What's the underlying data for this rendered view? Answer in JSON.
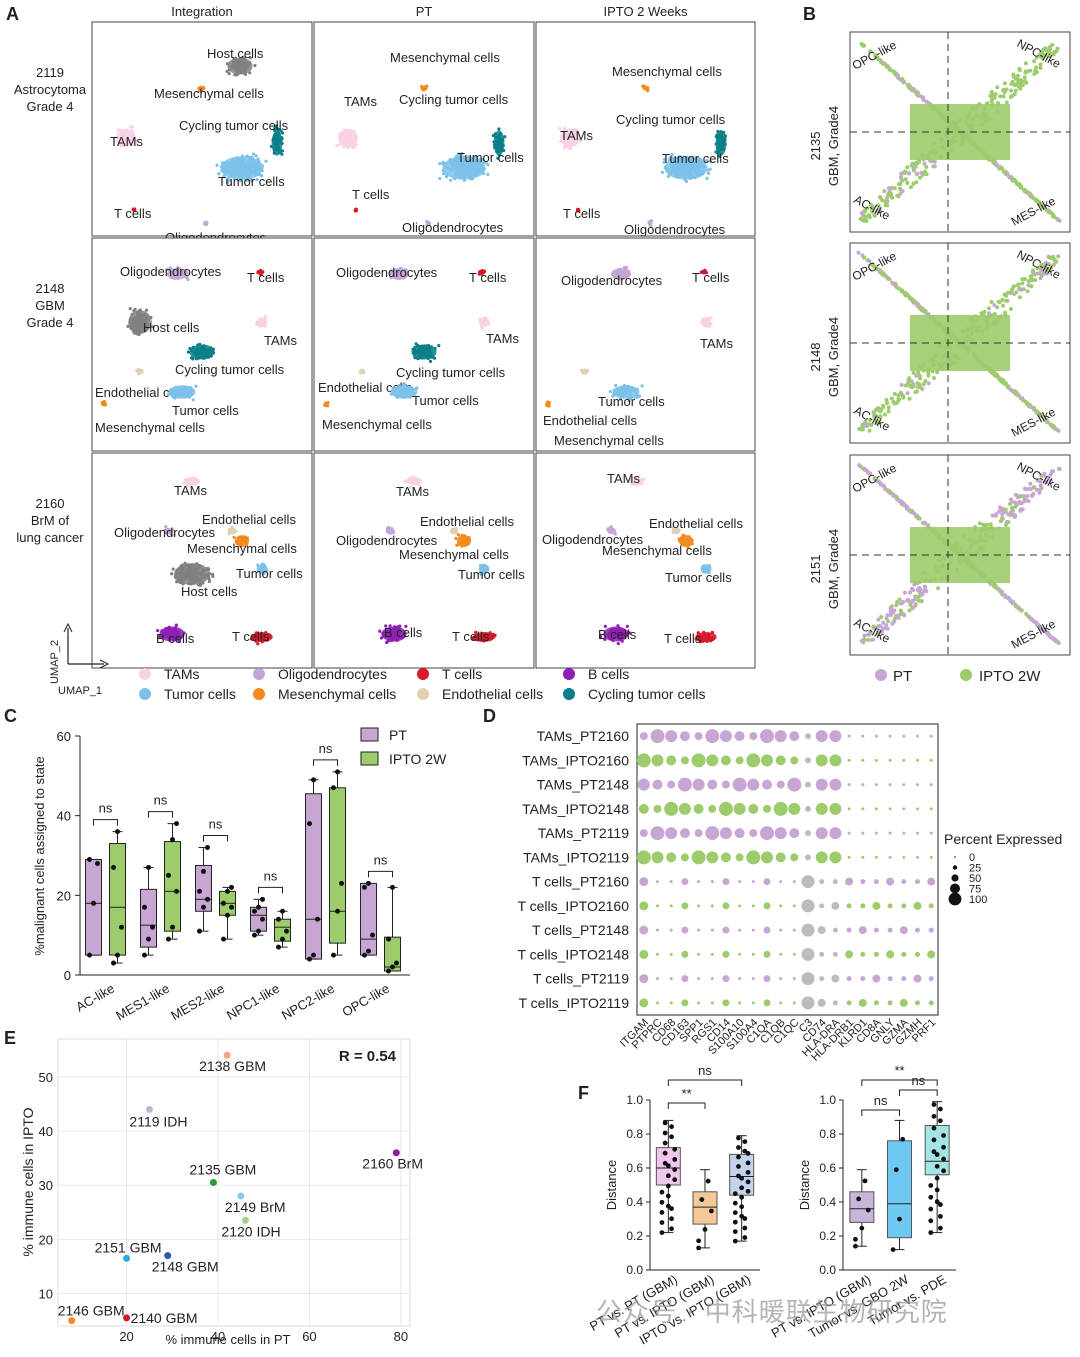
{
  "panels": {
    "A": "A",
    "B": "B",
    "C": "C",
    "D": "D",
    "E": "E",
    "F": "F"
  },
  "colors": {
    "TAMs": "#f9d1e6",
    "Tumor cells": "#7cc1ea",
    "Oligodendrocytes": "#c4a6d6",
    "Mesenchymal cells": "#f28a1f",
    "T cells": "#d61a2a",
    "Endothelial cells": "#ded2b3",
    "B cells": "#8e1fb4",
    "Cycling tumor cells": "#0a7f8a",
    "Host cells": "#808080",
    "pt": "#c7a6d3",
    "ipto": "#9ccc6c",
    "grey": "#bcbcbc"
  },
  "umap": {
    "columns": [
      "Integration",
      "PT",
      "IPTO 2 Weeks"
    ],
    "rows": [
      {
        "label": [
          "2119",
          "Astrocytoma",
          "Grade 4"
        ]
      },
      {
        "label": [
          "2148",
          "GBM",
          "Grade 4"
        ]
      },
      {
        "label": [
          "2160",
          "BrM of",
          "lung cancer"
        ]
      }
    ],
    "cells": [
      [
        [
          "Host cells",
          "Mesenchymal cells",
          "Cycling tumor cells",
          "TAMs",
          "Tumor cells",
          "T cells",
          "Oligodendrocytes"
        ],
        [
          "Mesenchymal cells",
          "TAMs",
          "Cycling tumor cells",
          "Tumor cells",
          "T cells",
          "Oligodendrocytes"
        ],
        [
          "Mesenchymal cells",
          "Cycling tumor cells",
          "TAMs",
          "Tumor cells",
          "T cells",
          "Oligodendrocytes"
        ]
      ],
      [
        [
          "Oligodendrocytes",
          "T cells",
          "Host cells",
          "TAMs",
          "Cycling tumor cells",
          "Endothelial cells",
          "Tumor cells",
          "Mesenchymal cells"
        ],
        [
          "Oligodendrocytes",
          "T cells",
          "TAMs",
          "Cycling tumor cells",
          "Endothelial cells",
          "Tumor cells",
          "Mesenchymal cells"
        ],
        [
          "Oligodendrocytes",
          "T cells",
          "TAMs",
          "Tumor cells",
          "Endothelial cells",
          "Mesenchymal cells"
        ]
      ],
      [
        [
          "TAMs",
          "Endothelial cells",
          "Oligodendrocytes",
          "Mesenchymal cells",
          "Tumor cells",
          "Host cells",
          "B cells",
          "T cells"
        ],
        [
          "TAMs",
          "Endothelial cells",
          "Oligodendrocytes",
          "Mesenchymal cells",
          "Tumor cells",
          "B cells",
          "T cells"
        ],
        [
          "TAMs",
          "Endothelial cells",
          "Oligodendrocytes",
          "Mesenchymal cells",
          "Tumor cells",
          "B cells",
          "T cells"
        ]
      ]
    ],
    "axis_y": "UMAP_2",
    "axis_x": "UMAP_1",
    "legend": [
      "TAMs",
      "Oligodendrocytes",
      "T cells",
      "B cells",
      "Tumor cells",
      "Mesenchymal cells",
      "Endothelial cells",
      "Cycling tumor cells"
    ]
  },
  "panelB": {
    "rows": [
      "2135\nGBM, Grade4",
      "2148\nGBM, Grade4",
      "2151\nGBM, Grade4"
    ],
    "corners": [
      "OPC-like",
      "NPC-like",
      "AC-like",
      "MES-like"
    ],
    "legend": [
      "PT",
      "IPTO 2W"
    ]
  },
  "chart_data": [
    {
      "panel": "C",
      "type": "box",
      "title": "",
      "ylabel": "%malignant cells assigned to state",
      "ylim": [
        0,
        60
      ],
      "yticks": [
        0,
        20,
        40,
        60
      ],
      "categories": [
        "AC-like",
        "MES1-like",
        "MES2-like",
        "NPC1-like",
        "NPC2-like",
        "OPC-like"
      ],
      "series": [
        {
          "name": "PT",
          "boxes": [
            {
              "min": 5,
              "q1": 5,
              "median": 18,
              "q3": 29,
              "max": 29,
              "points": [
                5,
                18,
                28,
                29
              ]
            },
            {
              "min": 5,
              "q1": 7,
              "median": 12.5,
              "q3": 21.5,
              "max": 27,
              "points": [
                5,
                9,
                12,
                17,
                27
              ]
            },
            {
              "min": 11,
              "q1": 16,
              "median": 19,
              "q3": 27.5,
              "max": 32,
              "points": [
                11,
                17,
                19,
                21,
                26,
                32
              ]
            },
            {
              "min": 10,
              "q1": 11,
              "median": 15,
              "q3": 17,
              "max": 19,
              "points": [
                10,
                11,
                14,
                16,
                17,
                19
              ]
            },
            {
              "min": 4,
              "q1": 4,
              "median": 14,
              "q3": 45.5,
              "max": 49,
              "points": [
                4,
                5,
                14,
                38,
                49
              ]
            },
            {
              "min": 5,
              "q1": 5,
              "median": 9,
              "q3": 23,
              "max": 23,
              "points": [
                5,
                6,
                10,
                22,
                23
              ]
            }
          ]
        },
        {
          "name": "IPTO 2W",
          "boxes": [
            {
              "min": 3,
              "q1": 5,
              "median": 17,
              "q3": 33,
              "max": 36,
              "points": [
                3,
                5,
                12,
                27,
                36
              ]
            },
            {
              "min": 9,
              "q1": 11,
              "median": 21,
              "q3": 33.5,
              "max": 38,
              "points": [
                9,
                12,
                21,
                25,
                34,
                38
              ]
            },
            {
              "min": 9,
              "q1": 15,
              "median": 18,
              "q3": 21,
              "max": 22,
              "points": [
                9,
                15,
                17,
                18,
                21,
                22
              ]
            },
            {
              "min": 7,
              "q1": 8.5,
              "median": 12,
              "q3": 14,
              "max": 16,
              "points": [
                7,
                9,
                11,
                14,
                16
              ]
            },
            {
              "min": 5,
              "q1": 8,
              "median": 16,
              "q3": 47,
              "max": 51,
              "points": [
                5,
                16,
                23,
                47,
                51
              ]
            },
            {
              "min": 1,
              "q1": 1,
              "median": 2,
              "q3": 9.5,
              "max": 22,
              "points": [
                1,
                2,
                3,
                9,
                22
              ]
            }
          ]
        }
      ],
      "significance": [
        "ns",
        "ns",
        "ns",
        "ns",
        "ns",
        "ns"
      ]
    },
    {
      "panel": "D",
      "type": "dotplot",
      "rows": [
        "TAMs_PT2160",
        "TAMs_IPTO2160",
        "TAMs_PT2148",
        "TAMs_IPTO2148",
        "TAMs_PT2119",
        "TAMs_IPTO2119",
        "T cells_PT2160",
        "T cells_IPTO2160",
        "T cells_PT2148",
        "T cells_IPTO2148",
        "T cells_PT2119",
        "T cells_IPTO2119"
      ],
      "genes": [
        "ITGAM",
        "PTPRC",
        "CD68",
        "CD163",
        "SPP1",
        "RGS1",
        "CD14",
        "S100A10",
        "S100A4",
        "C1QA",
        "C1QB",
        "C1QC",
        "C3",
        "CD74",
        "HLA-DRA",
        "HLA-DRB1",
        "KLRD1",
        "CD8A",
        "GNLY",
        "GZMA",
        "GZMH",
        "PRF1"
      ],
      "size_legend_title": "Percent Expressed",
      "size_legend": [
        0,
        25,
        50,
        75,
        100
      ]
    },
    {
      "panel": "E",
      "type": "scatter",
      "xlabel": "% immune cells in PT",
      "ylabel": "% immune cells in IPTO",
      "xlim": [
        5,
        82
      ],
      "ylim": [
        4,
        57
      ],
      "xticks": [
        20,
        40,
        60,
        80
      ],
      "yticks": [
        10,
        20,
        30,
        40,
        50
      ],
      "annotation": "R = 0.54",
      "points": [
        {
          "label": "2138 GBM",
          "x": 42,
          "y": 54,
          "color": "#f4a582"
        },
        {
          "label": "2119 IDH",
          "x": 25,
          "y": 44,
          "color": "#c9b4d8"
        },
        {
          "label": "2160 BrM",
          "x": 79,
          "y": 36,
          "color": "#8e1f9a"
        },
        {
          "label": "2135 GBM",
          "x": 39,
          "y": 30.5,
          "color": "#2a9d3a"
        },
        {
          "label": "2149 BrM",
          "x": 45,
          "y": 28,
          "color": "#8fc8ef"
        },
        {
          "label": "2120 IDH",
          "x": 46,
          "y": 23.5,
          "color": "#a8d08d"
        },
        {
          "label": "2151 GBM",
          "x": 20,
          "y": 16.5,
          "color": "#29a9df"
        },
        {
          "label": "2148 GBM",
          "x": 29,
          "y": 17,
          "color": "#2a5aa8"
        },
        {
          "label": "2146 GBM",
          "x": 8,
          "y": 5,
          "color": "#f28a1f"
        },
        {
          "label": "2140 GBM",
          "x": 20,
          "y": 5.5,
          "color": "#d61a2a"
        }
      ]
    },
    {
      "panel": "F",
      "type": "box",
      "ylabel": "Distance",
      "ylim": [
        0,
        1
      ],
      "yticks": [
        0.0,
        0.2,
        0.4,
        0.6,
        0.8,
        1.0
      ],
      "groups": [
        {
          "categories": [
            "PT vs. PT (GBM)",
            "PT vs. IPTO (GBM)",
            "IPTO vs. IPTO (GBM)"
          ],
          "boxes": [
            {
              "min": 0.22,
              "q1": 0.5,
              "median": 0.6,
              "q3": 0.72,
              "max": 0.88,
              "color": "#f0c6ec"
            },
            {
              "min": 0.13,
              "q1": 0.27,
              "median": 0.37,
              "q3": 0.46,
              "max": 0.59,
              "color": "#f5c89a"
            },
            {
              "min": 0.17,
              "q1": 0.44,
              "median": 0.55,
              "q3": 0.68,
              "max": 0.79,
              "color": "#c3d3ec"
            }
          ],
          "significance": [
            {
              "pair": [
                0,
                1
              ],
              "label": "**"
            },
            {
              "pair": [
                0,
                2
              ],
              "label": "ns"
            }
          ]
        },
        {
          "categories": [
            "PT vs. IPTO (GBM)",
            "Tumor vs. GBO 2W",
            "Tumor vs. PDE"
          ],
          "boxes": [
            {
              "min": 0.14,
              "q1": 0.28,
              "median": 0.36,
              "q3": 0.46,
              "max": 0.59,
              "color": "#c9b4dc"
            },
            {
              "min": 0.12,
              "q1": 0.19,
              "median": 0.39,
              "q3": 0.76,
              "max": 0.88,
              "color": "#6ec9f2"
            },
            {
              "min": 0.22,
              "q1": 0.56,
              "median": 0.64,
              "q3": 0.85,
              "max": 0.99,
              "color": "#a5e4e4"
            }
          ],
          "significance": [
            {
              "pair": [
                0,
                1
              ],
              "label": "ns"
            },
            {
              "pair": [
                1,
                2
              ],
              "label": "ns"
            },
            {
              "pair": [
                0,
                2
              ],
              "label": "**"
            }
          ]
        }
      ]
    }
  ],
  "watermark": "公众号 · 中科暖联生物研究院"
}
